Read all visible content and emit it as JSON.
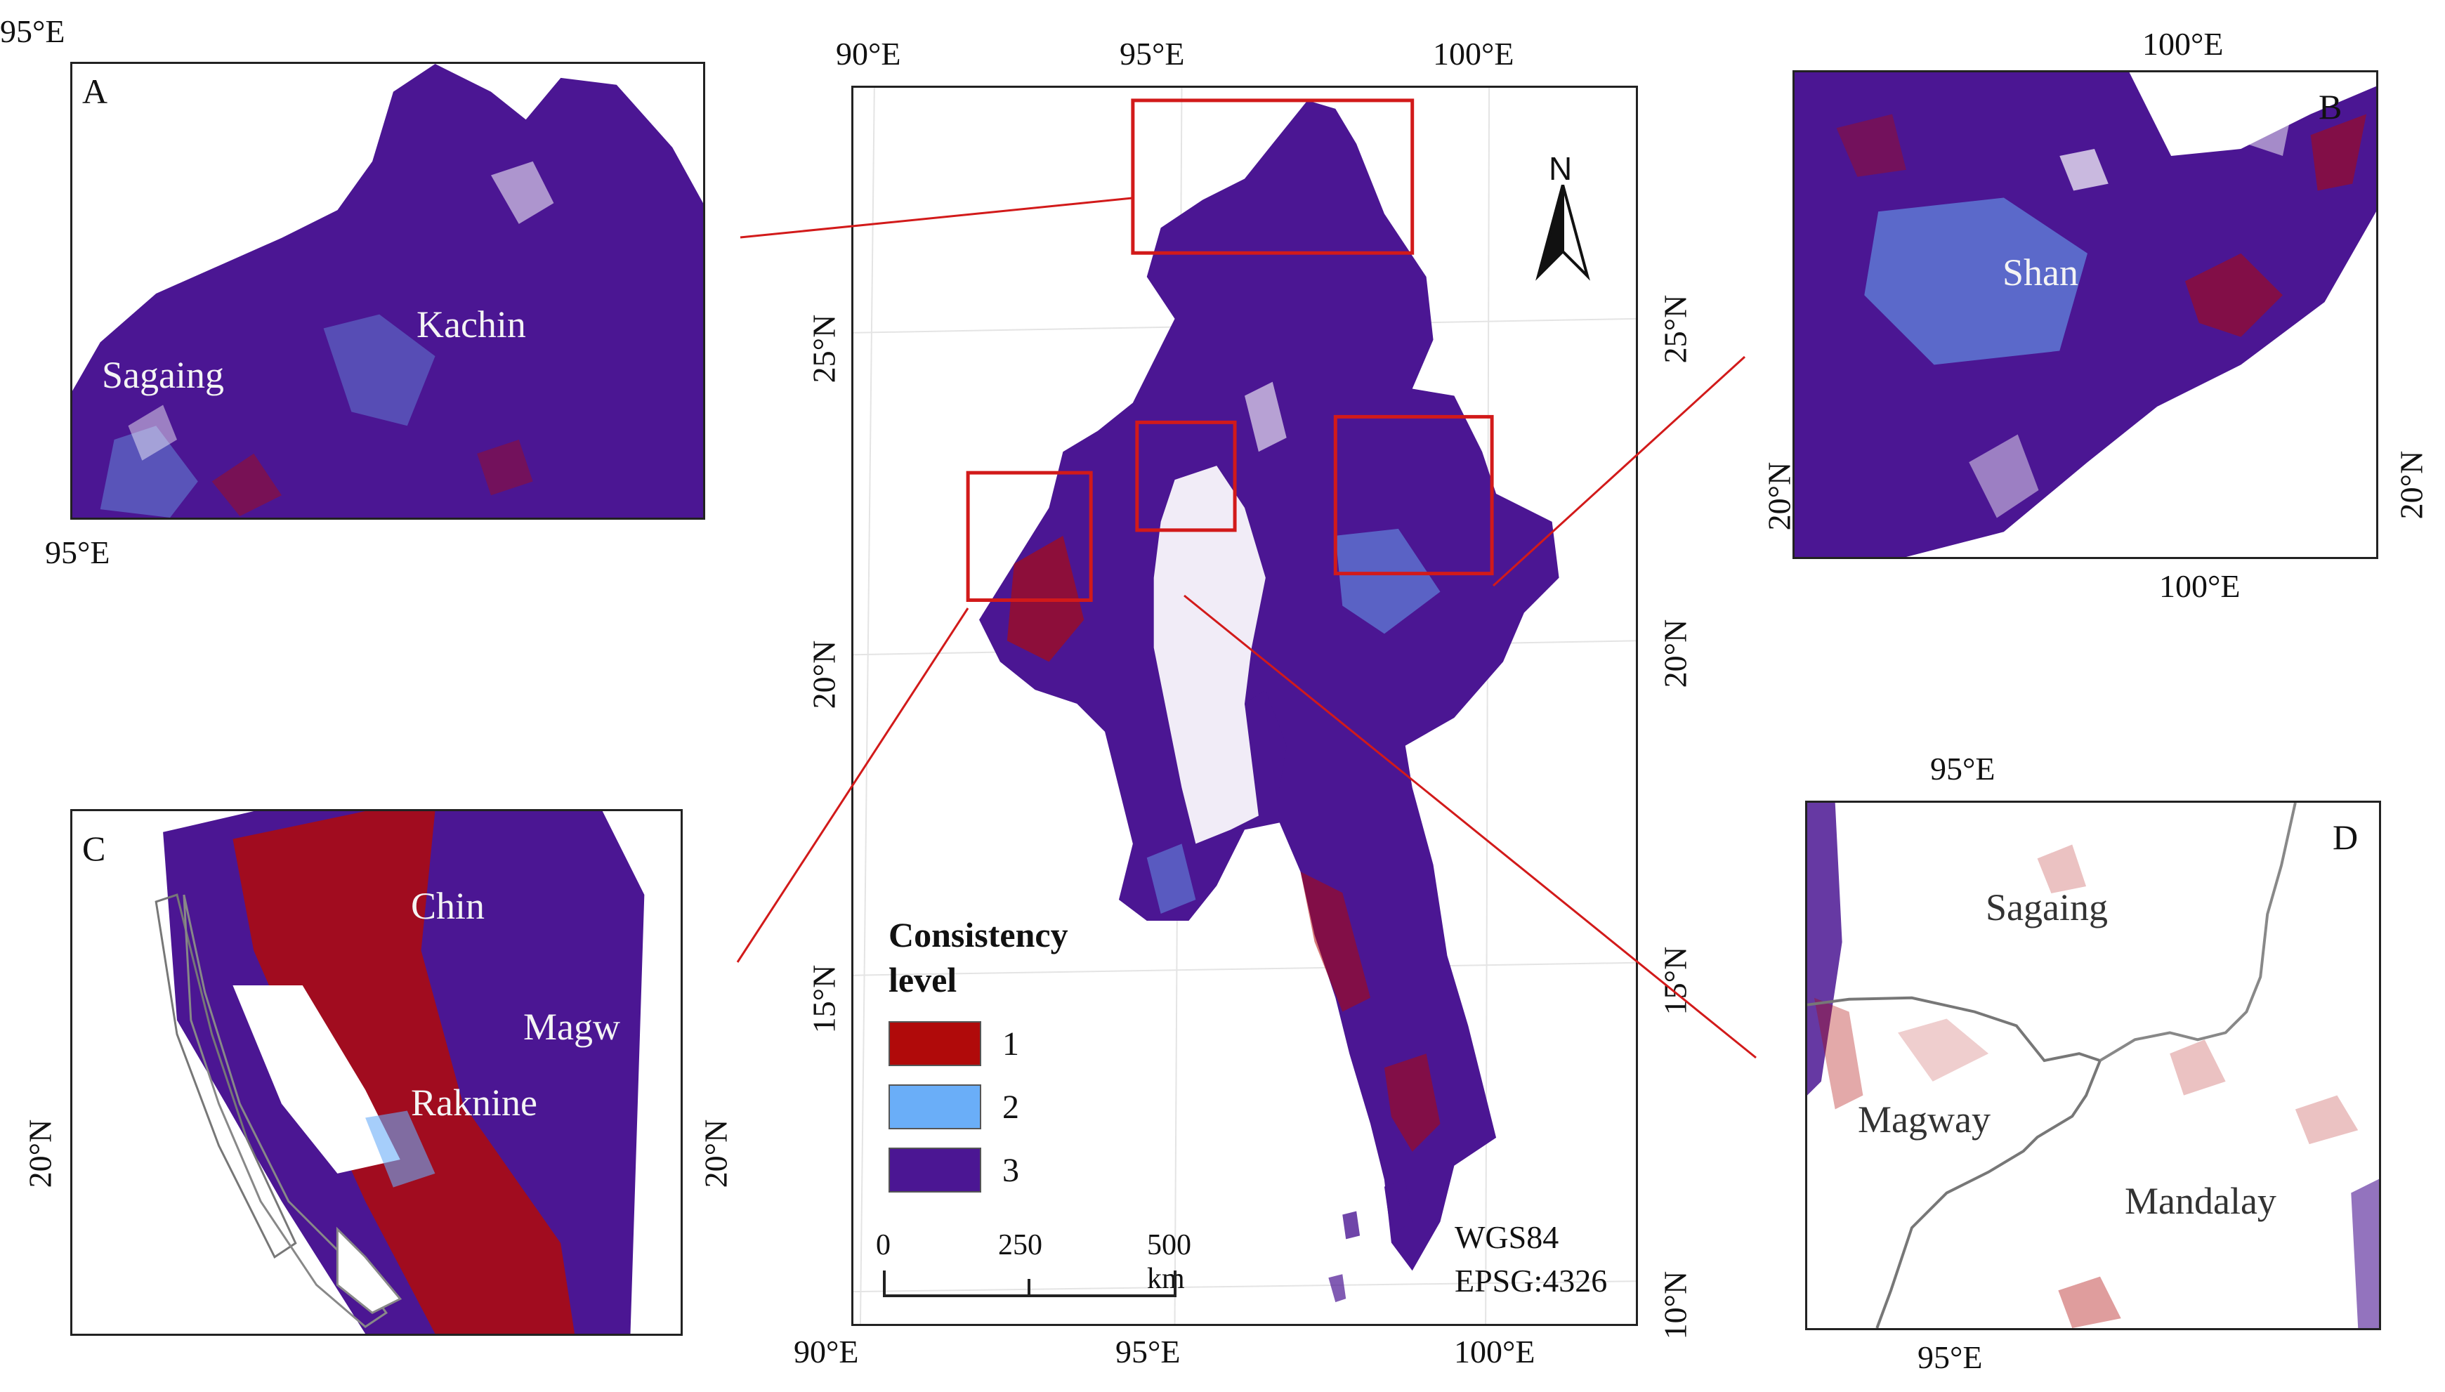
{
  "colors": {
    "level1": "#b00a0a",
    "level2": "#6aaef8",
    "level3": "#4b1693",
    "frame": "#d21a1a"
  },
  "main_map": {
    "top_ticks": [
      "90°E",
      "95°E",
      "100°E"
    ],
    "bottom_ticks": [
      "90°E",
      "95°E",
      "100°E"
    ],
    "left_ticks": [
      "25°N",
      "20°N",
      "15°N"
    ],
    "right_ticks": [
      "25°N",
      "20°N",
      "15°N",
      "10°N"
    ],
    "north_label": "N",
    "crs": [
      "WGS84",
      "EPSG:4326"
    ],
    "scale_bar": {
      "labels": [
        "0",
        "250",
        "500 km"
      ]
    }
  },
  "legend": {
    "title_line1": "Consistency",
    "title_line2": "level",
    "items": [
      {
        "label": "1",
        "color": "#b00a0a"
      },
      {
        "label": "2",
        "color": "#6aaef8"
      },
      {
        "label": "3",
        "color": "#4b1693"
      }
    ]
  },
  "panels": {
    "A": {
      "letter": "A",
      "top_tick": "95°E",
      "bottom_tick": "95°E",
      "places": [
        "Kachin",
        "Sagaing"
      ]
    },
    "B": {
      "letter": "B",
      "top_tick": "100°E",
      "bottom_tick": "100°E",
      "left_tick": "20°N",
      "right_tick": "20°N",
      "places": [
        "Shan"
      ]
    },
    "C": {
      "letter": "C",
      "left_tick": "20°N",
      "right_tick": "20°N",
      "places": [
        "Chin",
        "Magw",
        "Raknine"
      ]
    },
    "D": {
      "letter": "D",
      "top_tick": "95°E",
      "bottom_tick": "95°E",
      "places": [
        "Sagaing",
        "Magway",
        "Mandalay"
      ]
    }
  }
}
